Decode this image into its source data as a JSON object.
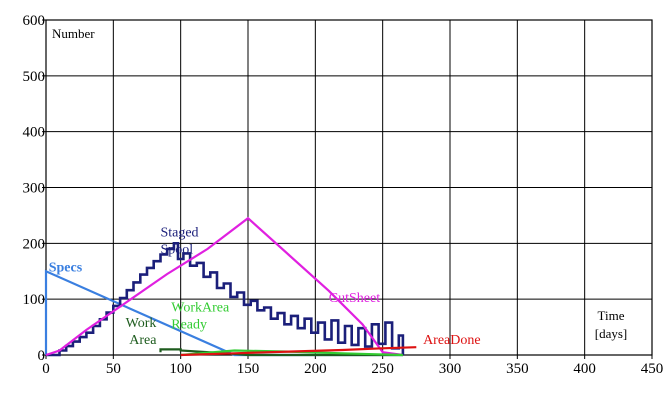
{
  "chart_data": {
    "type": "line",
    "title": "",
    "ylabel": "Number",
    "xlabel_lines": [
      "Time",
      "[days]"
    ],
    "xlim": [
      0,
      450
    ],
    "ylim": [
      0,
      600
    ],
    "xticks": [
      0,
      50,
      100,
      150,
      200,
      250,
      300,
      350,
      400,
      450
    ],
    "yticks": [
      0,
      100,
      200,
      300,
      400,
      500,
      600
    ],
    "grid": true,
    "series": [
      {
        "name": "Specs",
        "label_lines": [
          "Specs"
        ],
        "color": "#3a7fe0",
        "bold": true,
        "points": [
          [
            0,
            0
          ],
          [
            0,
            150
          ],
          [
            140,
            0
          ],
          [
            265,
            0
          ]
        ]
      },
      {
        "name": "Staged Spool",
        "label_lines": [
          "Staged",
          "Spool"
        ],
        "color": "#1b1f7a",
        "step": true,
        "points": [
          [
            0,
            0
          ],
          [
            5,
            0
          ],
          [
            10,
            8
          ],
          [
            15,
            16
          ],
          [
            20,
            24
          ],
          [
            25,
            32
          ],
          [
            30,
            40
          ],
          [
            35,
            52
          ],
          [
            40,
            64
          ],
          [
            45,
            76
          ],
          [
            50,
            88
          ],
          [
            55,
            102
          ],
          [
            60,
            116
          ],
          [
            65,
            130
          ],
          [
            70,
            144
          ],
          [
            75,
            156
          ],
          [
            80,
            168
          ],
          [
            85,
            180
          ],
          [
            90,
            190
          ],
          [
            95,
            200
          ],
          [
            98,
            172
          ],
          [
            102,
            182
          ],
          [
            107,
            160
          ],
          [
            112,
            165
          ],
          [
            117,
            140
          ],
          [
            122,
            148
          ],
          [
            127,
            120
          ],
          [
            132,
            128
          ],
          [
            137,
            104
          ],
          [
            142,
            112
          ],
          [
            147,
            90
          ],
          [
            152,
            97
          ],
          [
            157,
            80
          ],
          [
            162,
            85
          ],
          [
            167,
            65
          ],
          [
            172,
            75
          ],
          [
            177,
            55
          ],
          [
            182,
            70
          ],
          [
            187,
            48
          ],
          [
            192,
            65
          ],
          [
            197,
            40
          ],
          [
            202,
            58
          ],
          [
            207,
            28
          ],
          [
            212,
            62
          ],
          [
            217,
            22
          ],
          [
            222,
            52
          ],
          [
            227,
            18
          ],
          [
            232,
            48
          ],
          [
            237,
            15
          ],
          [
            242,
            55
          ],
          [
            247,
            20
          ],
          [
            252,
            58
          ],
          [
            257,
            12
          ],
          [
            262,
            35
          ],
          [
            265,
            2
          ],
          [
            265,
            0
          ]
        ]
      },
      {
        "name": "CutSheet",
        "label_lines": [
          "CutSheet"
        ],
        "color": "#e020e0",
        "points": [
          [
            0,
            0
          ],
          [
            10,
            8
          ],
          [
            30,
            45
          ],
          [
            60,
            95
          ],
          [
            90,
            145
          ],
          [
            120,
            190
          ],
          [
            150,
            245
          ],
          [
            180,
            180
          ],
          [
            210,
            115
          ],
          [
            235,
            55
          ],
          [
            250,
            5
          ],
          [
            265,
            0
          ]
        ]
      },
      {
        "name": "Work Area",
        "label_lines": [
          "Work",
          "Area"
        ],
        "color": "#1e5c1e",
        "points": [
          [
            85,
            5
          ],
          [
            85,
            10
          ],
          [
            100,
            10
          ],
          [
            100,
            8
          ],
          [
            140,
            2
          ],
          [
            150,
            0
          ],
          [
            265,
            0
          ]
        ]
      },
      {
        "name": "WorkArea Ready",
        "label_lines": [
          "WorkArea",
          "Ready"
        ],
        "color": "#33cc33",
        "points": [
          [
            100,
            0
          ],
          [
            140,
            8
          ],
          [
            180,
            6
          ],
          [
            220,
            3
          ],
          [
            265,
            0
          ]
        ]
      },
      {
        "name": "AreaDone",
        "label_lines": [
          "AreaDone"
        ],
        "color": "#dd1111",
        "points": [
          [
            100,
            0
          ],
          [
            140,
            3
          ],
          [
            180,
            6
          ],
          [
            220,
            9
          ],
          [
            250,
            12
          ],
          [
            275,
            14
          ]
        ]
      }
    ],
    "annotations": [
      {
        "series": "Specs",
        "at": [
          2,
          150
        ],
        "anchor": "start"
      },
      {
        "series": "Staged Spool",
        "at": [
          85,
          212
        ],
        "anchor": "start"
      },
      {
        "series": "CutSheet",
        "at": [
          210,
          95
        ],
        "anchor": "start"
      },
      {
        "series": "WorkArea Ready",
        "at": [
          93,
          78
        ],
        "anchor": "start"
      },
      {
        "series": "Work Area",
        "at": [
          82,
          50
        ],
        "anchor": "end"
      },
      {
        "series": "AreaDone",
        "at": [
          280,
          20
        ],
        "anchor": "start"
      }
    ]
  }
}
